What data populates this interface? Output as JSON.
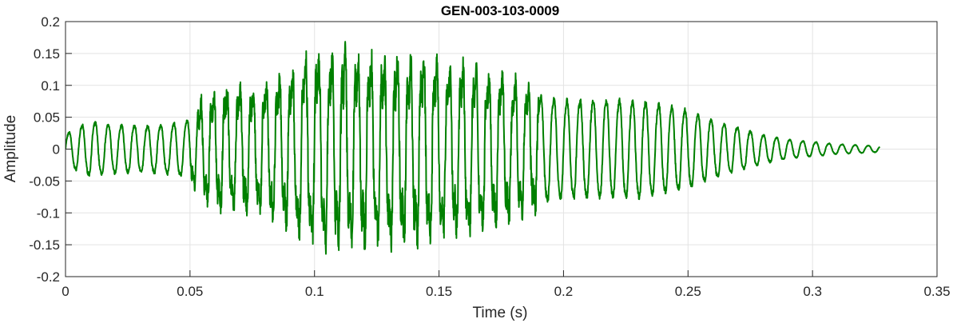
{
  "chart_data": {
    "type": "line",
    "title": "GEN-003-103-0009",
    "xlabel": "Time (s)",
    "ylabel": "Amplitude",
    "xlim": [
      0,
      0.35
    ],
    "ylim": [
      -0.2,
      0.2
    ],
    "grid": true,
    "x_ticks": [
      "0",
      "0.05",
      "0.1",
      "0.15",
      "0.2",
      "0.25",
      "0.3",
      "0.35"
    ],
    "y_ticks": [
      "0.2",
      "0.15",
      "0.1",
      "0.05",
      "0",
      "-0.05",
      "-0.1",
      "-0.15",
      "-0.2"
    ],
    "series": [
      {
        "color": "#008000",
        "envelope_x": [
          0,
          0.005,
          0.01,
          0.02,
          0.03,
          0.04,
          0.05,
          0.055,
          0.06,
          0.07,
          0.08,
          0.09,
          0.1,
          0.11,
          0.12,
          0.13,
          0.14,
          0.15,
          0.16,
          0.17,
          0.18,
          0.19,
          0.2,
          0.21,
          0.22,
          0.23,
          0.24,
          0.25,
          0.26,
          0.27,
          0.28,
          0.29,
          0.3,
          0.31,
          0.32,
          0.327
        ],
        "envelope_y": [
          0.03,
          0.045,
          0.055,
          0.05,
          0.048,
          0.05,
          0.06,
          0.09,
          0.11,
          0.11,
          0.12,
          0.14,
          0.17,
          0.18,
          0.17,
          0.17,
          0.165,
          0.16,
          0.15,
          0.14,
          0.125,
          0.11,
          0.1,
          0.1,
          0.1,
          0.1,
          0.09,
          0.08,
          0.06,
          0.045,
          0.03,
          0.02,
          0.015,
          0.01,
          0.008,
          0.006
        ],
        "frequency_hz": 190
      }
    ]
  }
}
